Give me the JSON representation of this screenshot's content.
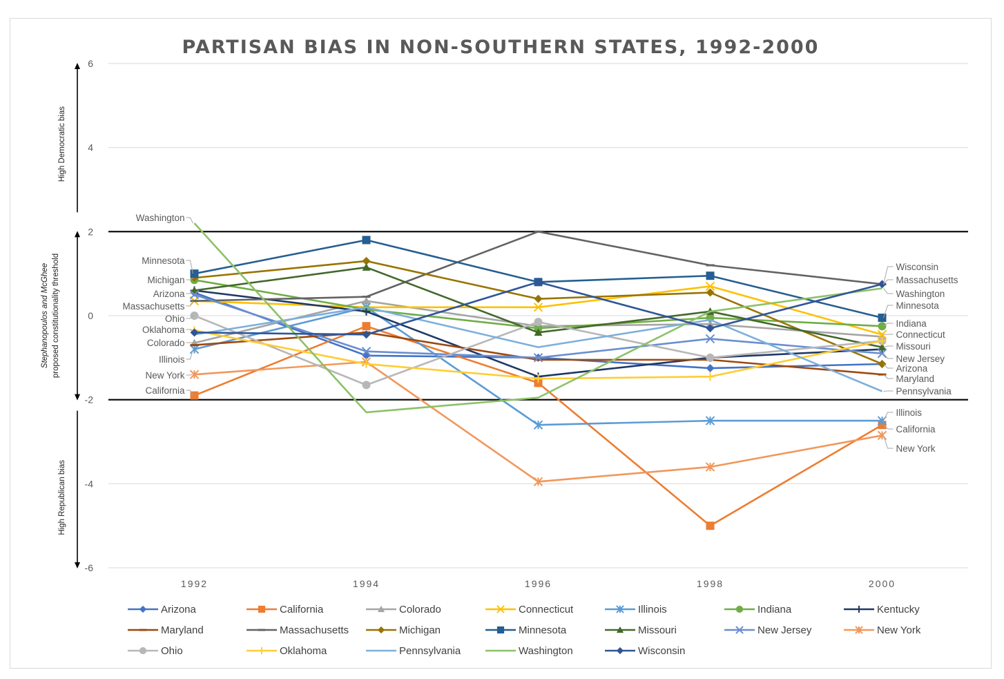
{
  "chart_data": {
    "type": "line",
    "title": "PARTISAN BIAS IN NON-SOUTHERN STATES, 1992-2000",
    "x": [
      "1992",
      "1994",
      "1996",
      "1998",
      "2000"
    ],
    "ylim": [
      -6,
      6
    ],
    "yticks": [
      "6",
      "4",
      "2",
      "0",
      "-2",
      "-4",
      "-6"
    ],
    "thresholds": [
      2,
      -2
    ],
    "side_labels": {
      "top": "High Democratic bias",
      "middle_line1": "Stephanopoulos and McGhee",
      "middle_line2": "proposed constitutionality threshold",
      "bottom": "High Republican bias"
    },
    "grid": true,
    "legend_position": "bottom",
    "series": [
      {
        "name": "Arizona",
        "color": "#4472C4",
        "marker": "diamond",
        "values": [
          0.55,
          -0.95,
          -1.0,
          -1.25,
          -1.15
        ]
      },
      {
        "name": "California",
        "color": "#ED7D31",
        "marker": "square",
        "values": [
          -1.9,
          -0.25,
          -1.6,
          -5.0,
          -2.6
        ]
      },
      {
        "name": "Colorado",
        "color": "#A5A5A5",
        "marker": "triangle",
        "values": [
          -0.65,
          0.35,
          -0.25,
          -0.2,
          -0.5
        ]
      },
      {
        "name": "Connecticut",
        "color": "#FFC000",
        "marker": "x",
        "values": [
          0.35,
          0.2,
          0.2,
          0.7,
          -0.45
        ]
      },
      {
        "name": "Illinois",
        "color": "#5B9BD5",
        "marker": "star",
        "values": [
          -0.8,
          0.2,
          -2.6,
          -2.5,
          -2.5
        ]
      },
      {
        "name": "Indiana",
        "color": "#70AD47",
        "marker": "circle",
        "values": [
          0.85,
          0.15,
          -0.3,
          -0.05,
          -0.25
        ]
      },
      {
        "name": "Kentucky",
        "color": "#1F3864",
        "marker": "plus",
        "values": [
          0.6,
          0.1,
          -1.45,
          -1.0,
          -0.8
        ]
      },
      {
        "name": "Maryland",
        "color": "#9E480E",
        "marker": "dash",
        "values": [
          -0.7,
          -0.4,
          -1.05,
          -1.05,
          -1.4
        ]
      },
      {
        "name": "Massachusetts",
        "color": "#636363",
        "marker": "dash",
        "values": [
          0.35,
          0.45,
          2.0,
          1.2,
          0.75
        ]
      },
      {
        "name": "Michigan",
        "color": "#997300",
        "marker": "diamond",
        "values": [
          0.9,
          1.3,
          0.4,
          0.55,
          -1.15
        ]
      },
      {
        "name": "Minnesota",
        "color": "#255E91",
        "marker": "square",
        "values": [
          1.0,
          1.8,
          0.8,
          0.95,
          -0.05
        ]
      },
      {
        "name": "Missouri",
        "color": "#43682B",
        "marker": "triangle",
        "values": [
          0.6,
          1.15,
          -0.4,
          0.1,
          -0.75
        ]
      },
      {
        "name": "New Jersey",
        "color": "#698ED0",
        "marker": "x",
        "values": [
          0.5,
          -0.85,
          -1.0,
          -0.55,
          -0.9
        ]
      },
      {
        "name": "New York",
        "color": "#F1975A",
        "marker": "star",
        "values": [
          -1.4,
          -1.1,
          -3.95,
          -3.6,
          -2.85
        ]
      },
      {
        "name": "Ohio",
        "color": "#B7B7B7",
        "marker": "circle",
        "values": [
          0.0,
          -1.65,
          -0.15,
          -1.0,
          -0.6
        ]
      },
      {
        "name": "Oklahoma",
        "color": "#FFCD33",
        "marker": "plus",
        "values": [
          -0.35,
          -1.15,
          -1.5,
          -1.45,
          -0.6
        ]
      },
      {
        "name": "Pennsylvania",
        "color": "#7CAFDD",
        "marker": "none",
        "values": [
          -0.45,
          0.2,
          -0.75,
          -0.1,
          -1.8
        ]
      },
      {
        "name": "Washington",
        "color": "#8CC168",
        "marker": "none",
        "values": [
          2.2,
          -2.3,
          -1.95,
          0.1,
          0.65
        ]
      },
      {
        "name": "Wisconsin",
        "color": "#2F5597",
        "marker": "diamond",
        "values": [
          -0.4,
          -0.45,
          0.8,
          -0.3,
          0.75
        ]
      }
    ],
    "left_labels": [
      "Washington",
      "Minnesota",
      "Michigan",
      "Arizona",
      "Massachusetts",
      "Ohio",
      "Oklahoma",
      "Colorado",
      "Illinois",
      "New York",
      "California"
    ],
    "right_labels": [
      "Wisconsin",
      "Massachusetts",
      "Washington",
      "Minnesota",
      "Indiana",
      "Connecticut",
      "Missouri",
      "New Jersey",
      "Arizona",
      "Maryland",
      "Pennsylvania",
      "Illinois",
      "California",
      "New York"
    ]
  }
}
